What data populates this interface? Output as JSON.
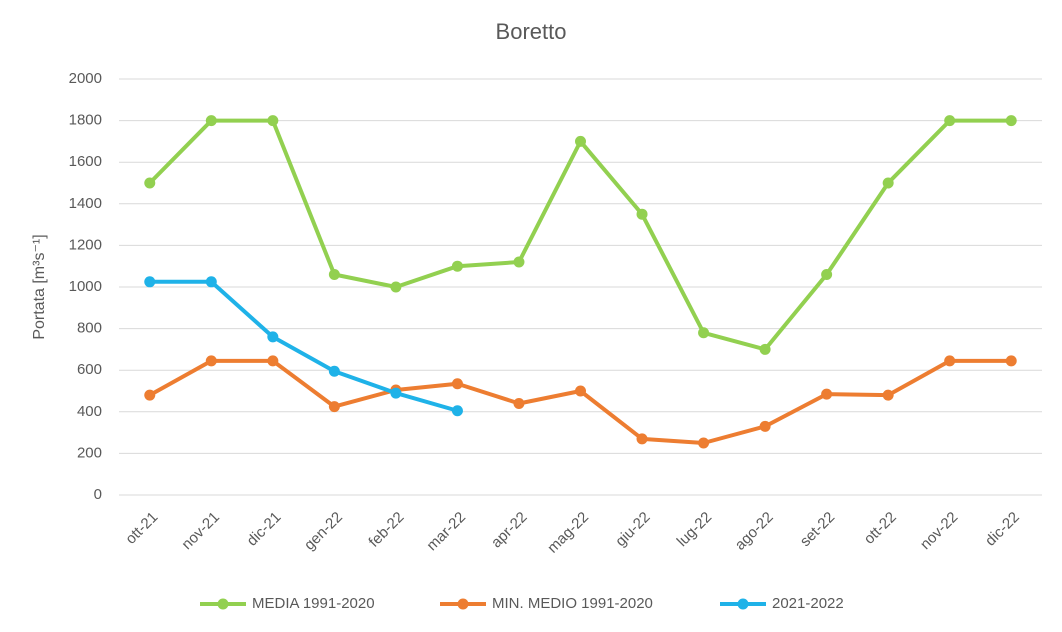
{
  "chart_data": {
    "type": "line",
    "title": "Boretto",
    "y_label": "Portata [m³s⁻¹]",
    "categories": [
      "ott-21",
      "nov-21",
      "dic-21",
      "gen-22",
      "feb-22",
      "mar-22",
      "apr-22",
      "mag-22",
      "giu-22",
      "lug-22",
      "ago-22",
      "set-22",
      "ott-22",
      "nov-22",
      "dic-22"
    ],
    "series": [
      {
        "name": "MEDIA 1991-2020",
        "color": "#92d050",
        "values": [
          1500,
          1800,
          1800,
          1060,
          1000,
          1100,
          1120,
          1700,
          1350,
          780,
          700,
          1060,
          1500,
          1800,
          1800
        ]
      },
      {
        "name": "MIN. MEDIO 1991-2020",
        "color": "#ed7d31",
        "values": [
          480,
          645,
          645,
          425,
          505,
          535,
          440,
          500,
          270,
          250,
          330,
          485,
          480,
          645,
          645
        ]
      },
      {
        "name": "2021-2022",
        "color": "#1fb2e8",
        "values": [
          1025,
          1025,
          760,
          595,
          490,
          405,
          null,
          null,
          null,
          null,
          null,
          null,
          null,
          null,
          null
        ]
      }
    ],
    "ylim": [
      0,
      2000
    ],
    "yticks": [
      0,
      200,
      400,
      600,
      800,
      1000,
      1200,
      1400,
      1600,
      1800,
      2000
    ],
    "grid": true,
    "legend": "bottom"
  }
}
